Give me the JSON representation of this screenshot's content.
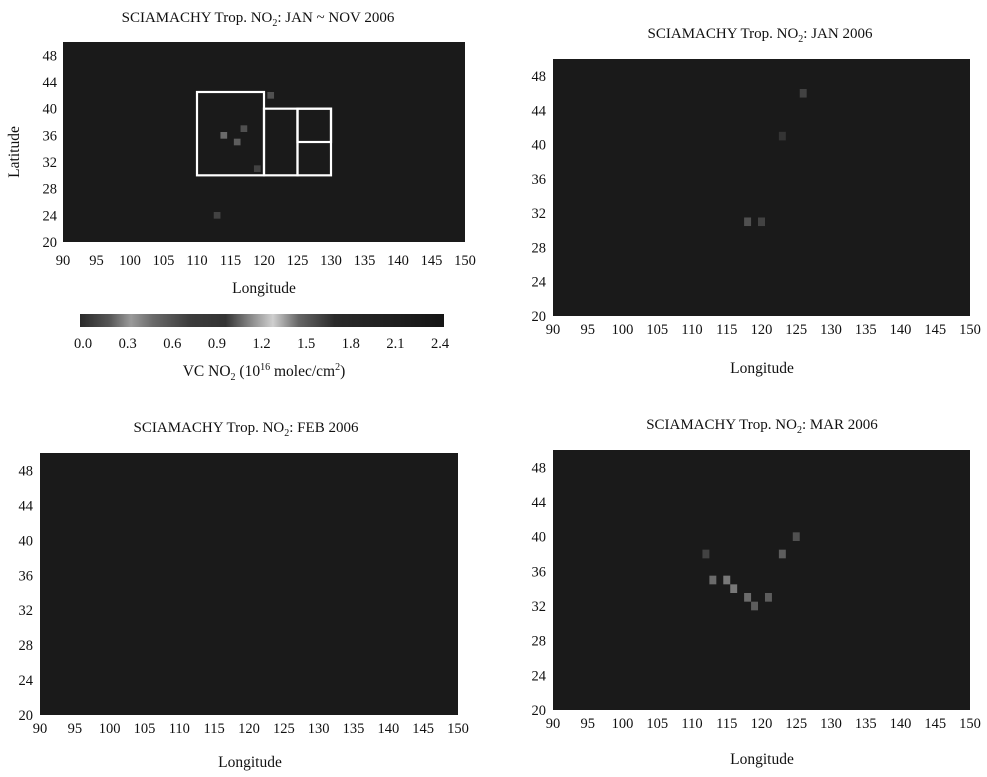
{
  "chart_data": [
    {
      "type": "heatmap",
      "title": "SCIAMACHY Trop. NO",
      "title_sub": "2",
      "title_tail": ": JAN ~ NOV 2006",
      "xlabel": "Longitude",
      "ylabel": "Latitude",
      "xlim": [
        90,
        150
      ],
      "ylim": [
        20,
        50
      ],
      "x_ticks": [
        "90",
        "95",
        "100",
        "105",
        "110",
        "115",
        "120",
        "125",
        "130",
        "135",
        "140",
        "145",
        "150"
      ],
      "y_ticks": [
        "20",
        "24",
        "28",
        "32",
        "36",
        "40",
        "44",
        "48"
      ],
      "regions": [
        {
          "lon": [
            110,
            120
          ],
          "lat": [
            30,
            42.5
          ]
        },
        {
          "lon": [
            120,
            125
          ],
          "lat": [
            30,
            40
          ]
        },
        {
          "lon": [
            125,
            130
          ],
          "lat": [
            30,
            40
          ]
        },
        {
          "lon": [
            125,
            130
          ],
          "lat": [
            35,
            40
          ]
        }
      ],
      "enhanced_cells": [
        {
          "lon": 114,
          "lat": 36,
          "value": 0.6
        },
        {
          "lon": 116,
          "lat": 35,
          "value": 0.5
        },
        {
          "lon": 117,
          "lat": 37,
          "value": 0.4
        },
        {
          "lon": 121,
          "lat": 42,
          "value": 0.4
        },
        {
          "lon": 113,
          "lat": 24,
          "value": 0.3
        },
        {
          "lon": 119,
          "lat": 31,
          "value": 0.3
        }
      ]
    },
    {
      "type": "heatmap",
      "title": "SCIAMACHY Trop. NO",
      "title_sub": "2",
      "title_tail": ": JAN 2006",
      "xlabel": "Longitude",
      "ylabel": "",
      "xlim": [
        90,
        150
      ],
      "ylim": [
        20,
        50
      ],
      "x_ticks": [
        "90",
        "95",
        "100",
        "105",
        "110",
        "115",
        "120",
        "125",
        "130",
        "135",
        "140",
        "145",
        "150"
      ],
      "y_ticks": [
        "20",
        "24",
        "28",
        "32",
        "36",
        "40",
        "44",
        "48"
      ],
      "enhanced_cells": [
        {
          "lon": 118,
          "lat": 31,
          "value": 0.4
        },
        {
          "lon": 120,
          "lat": 31,
          "value": 0.3
        },
        {
          "lon": 126,
          "lat": 46,
          "value": 0.3
        },
        {
          "lon": 123,
          "lat": 41,
          "value": 0.2
        }
      ]
    },
    {
      "type": "heatmap",
      "title": "SCIAMACHY Trop. NO",
      "title_sub": "2",
      "title_tail": ": FEB 2006",
      "xlabel": "Longitude",
      "ylabel": "",
      "xlim": [
        90,
        150
      ],
      "ylim": [
        20,
        50
      ],
      "x_ticks": [
        "90",
        "95",
        "100",
        "105",
        "110",
        "115",
        "120",
        "125",
        "130",
        "135",
        "140",
        "145",
        "150"
      ],
      "y_ticks": [
        "20",
        "24",
        "28",
        "32",
        "36",
        "40",
        "44",
        "48"
      ],
      "enhanced_cells": []
    },
    {
      "type": "heatmap",
      "title": "SCIAMACHY Trop. NO",
      "title_sub": "2",
      "title_tail": ": MAR 2006",
      "xlabel": "Longitude",
      "ylabel": "",
      "xlim": [
        90,
        150
      ],
      "ylim": [
        20,
        50
      ],
      "x_ticks": [
        "90",
        "95",
        "100",
        "105",
        "110",
        "115",
        "120",
        "125",
        "130",
        "135",
        "140",
        "145",
        "150"
      ],
      "y_ticks": [
        "20",
        "24",
        "28",
        "32",
        "36",
        "40",
        "44",
        "48"
      ],
      "enhanced_cells": [
        {
          "lon": 113,
          "lat": 35,
          "value": 0.6
        },
        {
          "lon": 115,
          "lat": 35,
          "value": 0.7
        },
        {
          "lon": 116,
          "lat": 34,
          "value": 0.7
        },
        {
          "lon": 118,
          "lat": 33,
          "value": 0.6
        },
        {
          "lon": 119,
          "lat": 32,
          "value": 0.5
        },
        {
          "lon": 121,
          "lat": 33,
          "value": 0.5
        },
        {
          "lon": 123,
          "lat": 38,
          "value": 0.5
        },
        {
          "lon": 125,
          "lat": 40,
          "value": 0.4
        },
        {
          "lon": 112,
          "lat": 38,
          "value": 0.3
        }
      ]
    }
  ],
  "colorbar": {
    "label_pre": "VC NO",
    "label_sub": "2",
    "label_mid": " (10",
    "label_sup": "16",
    "label_post": " molec/cm",
    "label_sup2": "2",
    "label_end": ")",
    "ticks": [
      "0.0",
      "0.3",
      "0.6",
      "0.9",
      "1.2",
      "1.5",
      "1.8",
      "2.1",
      "2.4"
    ],
    "range": [
      0.0,
      2.4
    ]
  },
  "colors": {
    "background": "#1a1a1a",
    "region_box": "#ffffff"
  }
}
